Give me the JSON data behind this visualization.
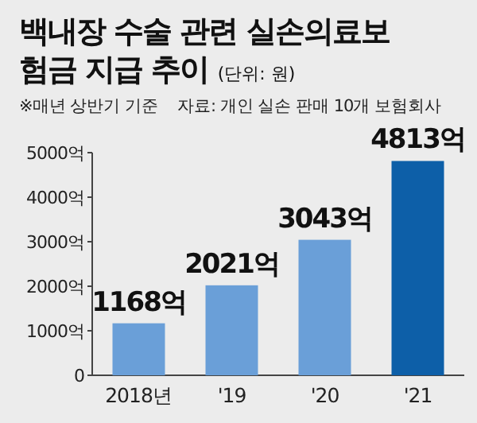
{
  "chart_data": {
    "type": "bar",
    "title": "백내장 수술 관련 실손의료보험금 지급 추이",
    "annotations": [
      "(단위: 원)",
      "※매년 상반기 기준",
      "자료: 개인 실손 판매 10개 보험회사"
    ],
    "categories": [
      "2018년",
      "'19",
      "'20",
      "'21"
    ],
    "values": [
      1168,
      2021,
      3043,
      4813
    ],
    "value_labels": [
      "1168억",
      "2021억",
      "3043억",
      "4813억"
    ],
    "colors": [
      "#6a9fd8",
      "#6a9fd8",
      "#6a9fd8",
      "#0d5fa8"
    ],
    "ylim": [
      0,
      5000
    ],
    "yticks": [
      0,
      {
        "value": 1000,
        "label": "1000억"
      },
      {
        "value": 2000,
        "label": "2000억"
      },
      {
        "value": 3000,
        "label": "3000억"
      },
      {
        "value": 4000,
        "label": "4000억"
      },
      {
        "value": 5000,
        "label": "5000억"
      }
    ]
  }
}
